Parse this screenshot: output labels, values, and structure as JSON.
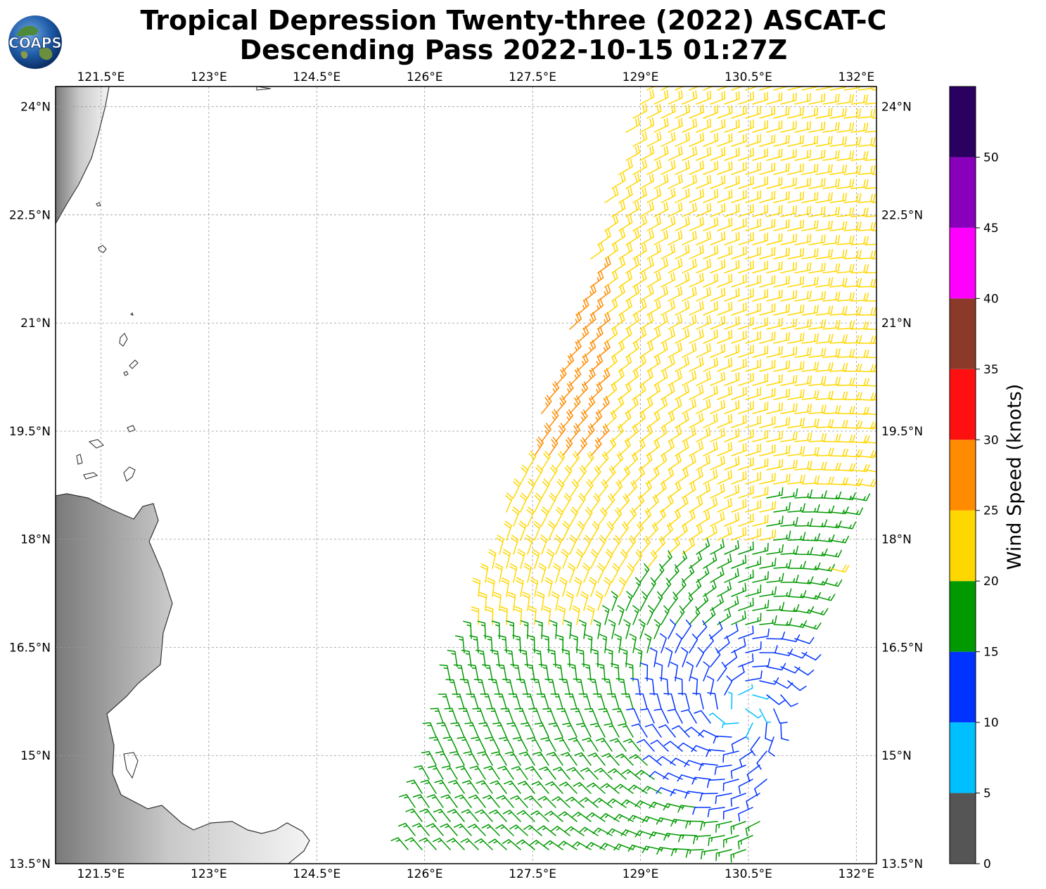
{
  "title": {
    "line1": "Tropical Depression Twenty-three (2022) ASCAT-C",
    "line2": "Descending Pass 2022-10-15 01:27Z"
  },
  "logo": {
    "text": "COAPS"
  },
  "map": {
    "lon_range": [
      120.87,
      132.28
    ],
    "lat_range": [
      13.5,
      24.28
    ],
    "lon_ticks": [
      "121.5°E",
      "123°E",
      "124.5°E",
      "126°E",
      "127.5°E",
      "129°E",
      "130.5°E",
      "132°E"
    ],
    "lat_ticks": [
      "24°N",
      "22.5°N",
      "21°N",
      "19.5°N",
      "18°N",
      "16.5°N",
      "15°N",
      "13.5°N"
    ],
    "gridlines": true,
    "swath_polygon_lonlat": [
      [
        125.6,
        13.5
      ],
      [
        126.4,
        16.2
      ],
      [
        127.0,
        18.05
      ],
      [
        127.9,
        20.6
      ],
      [
        128.5,
        22.7
      ],
      [
        129.0,
        24.3
      ],
      [
        132.3,
        24.3
      ],
      [
        132.3,
        19.2
      ],
      [
        131.6,
        17.5
      ],
      [
        131.1,
        15.9
      ],
      [
        130.8,
        14.7
      ],
      [
        130.6,
        13.5
      ]
    ],
    "cyclone_center_lonlat": [
      130.4,
      15.6
    ]
  },
  "colorbar": {
    "label": "Wind Speed (knots)",
    "ticks": [
      "0",
      "5",
      "10",
      "15",
      "20",
      "25",
      "30",
      "35",
      "40",
      "45",
      "50"
    ],
    "bins": [
      {
        "min": 0,
        "max": 5,
        "color": "#555555"
      },
      {
        "min": 5,
        "max": 10,
        "color": "#00bfff"
      },
      {
        "min": 10,
        "max": 15,
        "color": "#0033ff"
      },
      {
        "min": 15,
        "max": 20,
        "color": "#009900"
      },
      {
        "min": 20,
        "max": 25,
        "color": "#ffd700"
      },
      {
        "min": 25,
        "max": 30,
        "color": "#ff8c00"
      },
      {
        "min": 30,
        "max": 35,
        "color": "#ff1010"
      },
      {
        "min": 35,
        "max": 40,
        "color": "#8b3a2a"
      },
      {
        "min": 40,
        "max": 45,
        "color": "#ff00ff"
      },
      {
        "min": 45,
        "max": 50,
        "color": "#8800bb"
      },
      {
        "min": 50,
        "max": 55,
        "color": "#2a0060"
      }
    ]
  }
}
